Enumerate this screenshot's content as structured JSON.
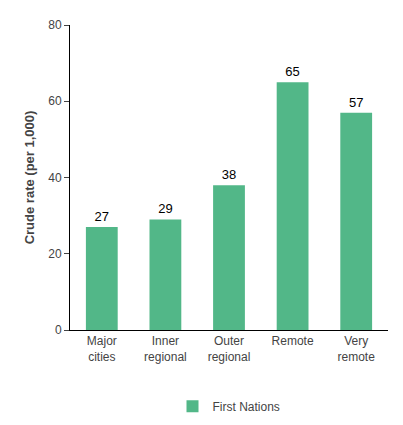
{
  "chart_data": {
    "type": "bar",
    "ylabel": "Crude rate (per 1,000)",
    "categories": [
      "Major\ncities",
      "Inner\nregional",
      "Outer\nregional",
      "Remote",
      "Very\nremote"
    ],
    "series": [
      {
        "name": "First Nations",
        "color": "#52b788",
        "values": [
          27,
          29,
          38,
          65,
          57
        ]
      }
    ],
    "ylim": [
      0,
      80
    ],
    "yticks": [
      0,
      20,
      40,
      60,
      80
    ],
    "grid": false,
    "legend": "bottom",
    "data_labels": true
  }
}
